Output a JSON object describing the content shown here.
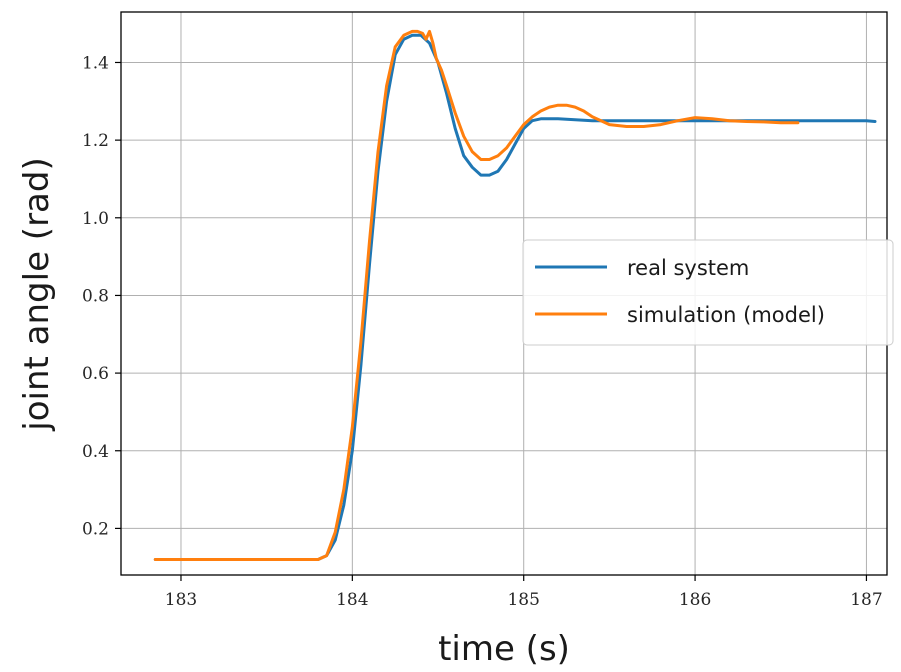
{
  "chart_data": {
    "type": "line",
    "xlabel": "time (s)",
    "ylabel": "joint angle (rad)",
    "xlim": [
      182.65,
      187.12
    ],
    "ylim": [
      0.08,
      1.53
    ],
    "xticks": [
      183,
      184,
      185,
      186,
      187
    ],
    "xtick_labels": [
      "183",
      "184",
      "185",
      "186",
      "187"
    ],
    "yticks": [
      0.2,
      0.4,
      0.6,
      0.8,
      1.0,
      1.2,
      1.4
    ],
    "ytick_labels": [
      "0.2",
      "0.4",
      "0.6",
      "0.8",
      "1.0",
      "1.2",
      "1.4"
    ],
    "grid": true,
    "legend_position": "center-right",
    "series": [
      {
        "name": "real system",
        "color": "#1f77b4",
        "x": [
          182.85,
          183.3,
          183.8,
          183.85,
          183.9,
          183.95,
          184.0,
          184.05,
          184.1,
          184.15,
          184.2,
          184.25,
          184.3,
          184.35,
          184.4,
          184.45,
          184.5,
          184.55,
          184.6,
          184.65,
          184.7,
          184.75,
          184.8,
          184.85,
          184.9,
          184.95,
          185.0,
          185.05,
          185.1,
          185.2,
          185.4,
          185.6,
          185.8,
          186.0,
          186.2,
          186.4,
          186.6,
          186.8,
          187.0,
          187.05
        ],
        "y": [
          0.12,
          0.12,
          0.12,
          0.13,
          0.17,
          0.26,
          0.4,
          0.62,
          0.88,
          1.12,
          1.3,
          1.42,
          1.46,
          1.47,
          1.47,
          1.45,
          1.4,
          1.32,
          1.23,
          1.16,
          1.13,
          1.11,
          1.11,
          1.12,
          1.15,
          1.19,
          1.23,
          1.25,
          1.255,
          1.255,
          1.25,
          1.25,
          1.25,
          1.25,
          1.25,
          1.25,
          1.25,
          1.25,
          1.25,
          1.248
        ]
      },
      {
        "name": "simulation (model)",
        "color": "#ff7f0e",
        "x": [
          182.85,
          183.3,
          183.8,
          183.85,
          183.9,
          183.95,
          184.0,
          184.05,
          184.1,
          184.15,
          184.2,
          184.25,
          184.3,
          184.35,
          184.38,
          184.41,
          184.43,
          184.45,
          184.47,
          184.49,
          184.52,
          184.55,
          184.6,
          184.65,
          184.7,
          184.75,
          184.8,
          184.85,
          184.9,
          184.95,
          185.0,
          185.05,
          185.1,
          185.15,
          185.2,
          185.25,
          185.3,
          185.35,
          185.4,
          185.5,
          185.6,
          185.7,
          185.8,
          185.9,
          186.0,
          186.1,
          186.2,
          186.3,
          186.4,
          186.5,
          186.6
        ],
        "y": [
          0.12,
          0.12,
          0.12,
          0.13,
          0.19,
          0.3,
          0.46,
          0.68,
          0.94,
          1.17,
          1.34,
          1.44,
          1.47,
          1.48,
          1.48,
          1.475,
          1.46,
          1.48,
          1.45,
          1.41,
          1.38,
          1.34,
          1.27,
          1.21,
          1.17,
          1.15,
          1.15,
          1.16,
          1.18,
          1.21,
          1.24,
          1.26,
          1.275,
          1.285,
          1.29,
          1.29,
          1.285,
          1.275,
          1.26,
          1.24,
          1.235,
          1.235,
          1.24,
          1.25,
          1.258,
          1.255,
          1.25,
          1.248,
          1.247,
          1.245,
          1.245
        ]
      }
    ]
  }
}
